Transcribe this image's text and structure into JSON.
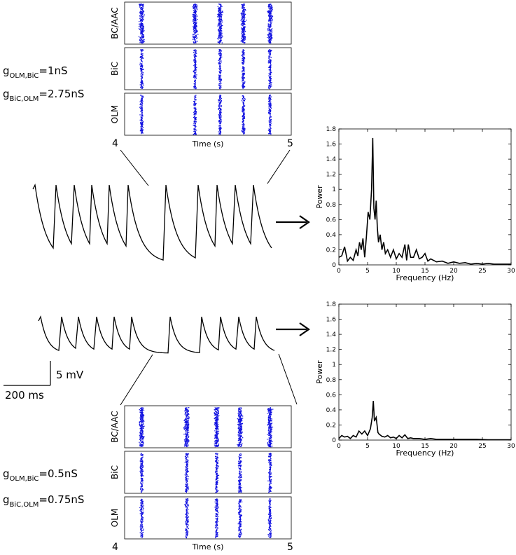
{
  "top": {
    "params": [
      {
        "sym": "g",
        "sub": "OLM,BiC",
        "val": "=1nS"
      },
      {
        "sym": "g",
        "sub": "BiC,OLM",
        "val": "=2.75nS"
      }
    ],
    "raster": {
      "rows": [
        "BC/AAC",
        "BiC",
        "OLM"
      ],
      "xlabel": "Time (s)",
      "xticks": [
        "4",
        "5"
      ],
      "bursts_s": [
        4.1,
        4.42,
        4.57,
        4.71,
        4.87
      ],
      "color": "#1010e0"
    }
  },
  "bottom": {
    "params": [
      {
        "sym": "g",
        "sub": "OLM,BiC",
        "val": "=0.5nS"
      },
      {
        "sym": "g",
        "sub": "BiC,OLM",
        "val": "=0.75nS"
      }
    ],
    "raster": {
      "rows": [
        "BC/AAC",
        "BiC",
        "OLM"
      ],
      "xlabel": "Time (s)",
      "xticks": [
        "4",
        "5"
      ],
      "bursts_s": [
        4.1,
        4.37,
        4.55,
        4.69,
        4.87
      ],
      "color": "#1010e0"
    }
  },
  "scalebar": {
    "voltage": "5 mV",
    "time": "200 ms"
  },
  "chart_data": [
    {
      "type": "line",
      "title": "",
      "xlabel": "Frequency (Hz)",
      "ylabel": "Power",
      "xlim": [
        0,
        30
      ],
      "ylim": [
        0,
        1.8
      ],
      "xticks": [
        0,
        5,
        10,
        15,
        20,
        25,
        30
      ],
      "yticks": [
        0,
        0.2,
        0.4,
        0.6,
        0.8,
        1,
        1.2,
        1.4,
        1.6,
        1.8
      ],
      "x": [
        0,
        0.5,
        1,
        1.5,
        2,
        2.5,
        3,
        3.3,
        3.6,
        3.9,
        4.2,
        4.5,
        4.8,
        5.1,
        5.4,
        5.7,
        5.9,
        6.1,
        6.3,
        6.5,
        6.7,
        6.9,
        7.2,
        7.5,
        7.8,
        8.1,
        8.5,
        9,
        9.5,
        10,
        10.5,
        11,
        11.5,
        11.8,
        12.1,
        12.5,
        13,
        13.5,
        14,
        14.5,
        15,
        15.5,
        16,
        17,
        18,
        19,
        20,
        21,
        22,
        23,
        24,
        25,
        26,
        27,
        28,
        29,
        30
      ],
      "values": [
        0.1,
        0.12,
        0.24,
        0.05,
        0.1,
        0.06,
        0.2,
        0.12,
        0.3,
        0.2,
        0.35,
        0.1,
        0.38,
        0.7,
        0.6,
        1.0,
        1.68,
        0.75,
        0.6,
        0.85,
        0.5,
        0.3,
        0.4,
        0.2,
        0.3,
        0.15,
        0.2,
        0.1,
        0.2,
        0.08,
        0.15,
        0.1,
        0.27,
        0.06,
        0.27,
        0.1,
        0.1,
        0.2,
        0.08,
        0.1,
        0.15,
        0.05,
        0.08,
        0.04,
        0.05,
        0.02,
        0.04,
        0.02,
        0.03,
        0.01,
        0.02,
        0.01,
        0.02,
        0.01,
        0.01,
        0.01,
        0.01
      ]
    },
    {
      "type": "line",
      "title": "",
      "xlabel": "Frequency (Hz)",
      "ylabel": "Power",
      "xlim": [
        0,
        30
      ],
      "ylim": [
        0,
        1.8
      ],
      "xticks": [
        0,
        5,
        10,
        15,
        20,
        25,
        30
      ],
      "yticks": [
        0,
        0.2,
        0.4,
        0.6,
        0.8,
        1,
        1.2,
        1.4,
        1.6,
        1.8
      ],
      "x": [
        0,
        0.5,
        1,
        1.5,
        2,
        2.5,
        3,
        3.5,
        4,
        4.5,
        5,
        5.5,
        5.8,
        6,
        6.2,
        6.5,
        6.8,
        7,
        7.5,
        8,
        8.5,
        9,
        9.5,
        10,
        10.5,
        11,
        11.5,
        12,
        12.5,
        13,
        14,
        15,
        16,
        17,
        18,
        20,
        22,
        24,
        26,
        28,
        30
      ],
      "values": [
        0.02,
        0.06,
        0.04,
        0.05,
        0.02,
        0.06,
        0.04,
        0.12,
        0.08,
        0.12,
        0.06,
        0.15,
        0.3,
        0.52,
        0.25,
        0.3,
        0.1,
        0.08,
        0.05,
        0.04,
        0.06,
        0.03,
        0.04,
        0.02,
        0.06,
        0.03,
        0.07,
        0.02,
        0.03,
        0.02,
        0.02,
        0.01,
        0.02,
        0.01,
        0.01,
        0.01,
        0.01,
        0.01,
        0.005,
        0.005,
        0.005
      ]
    }
  ]
}
